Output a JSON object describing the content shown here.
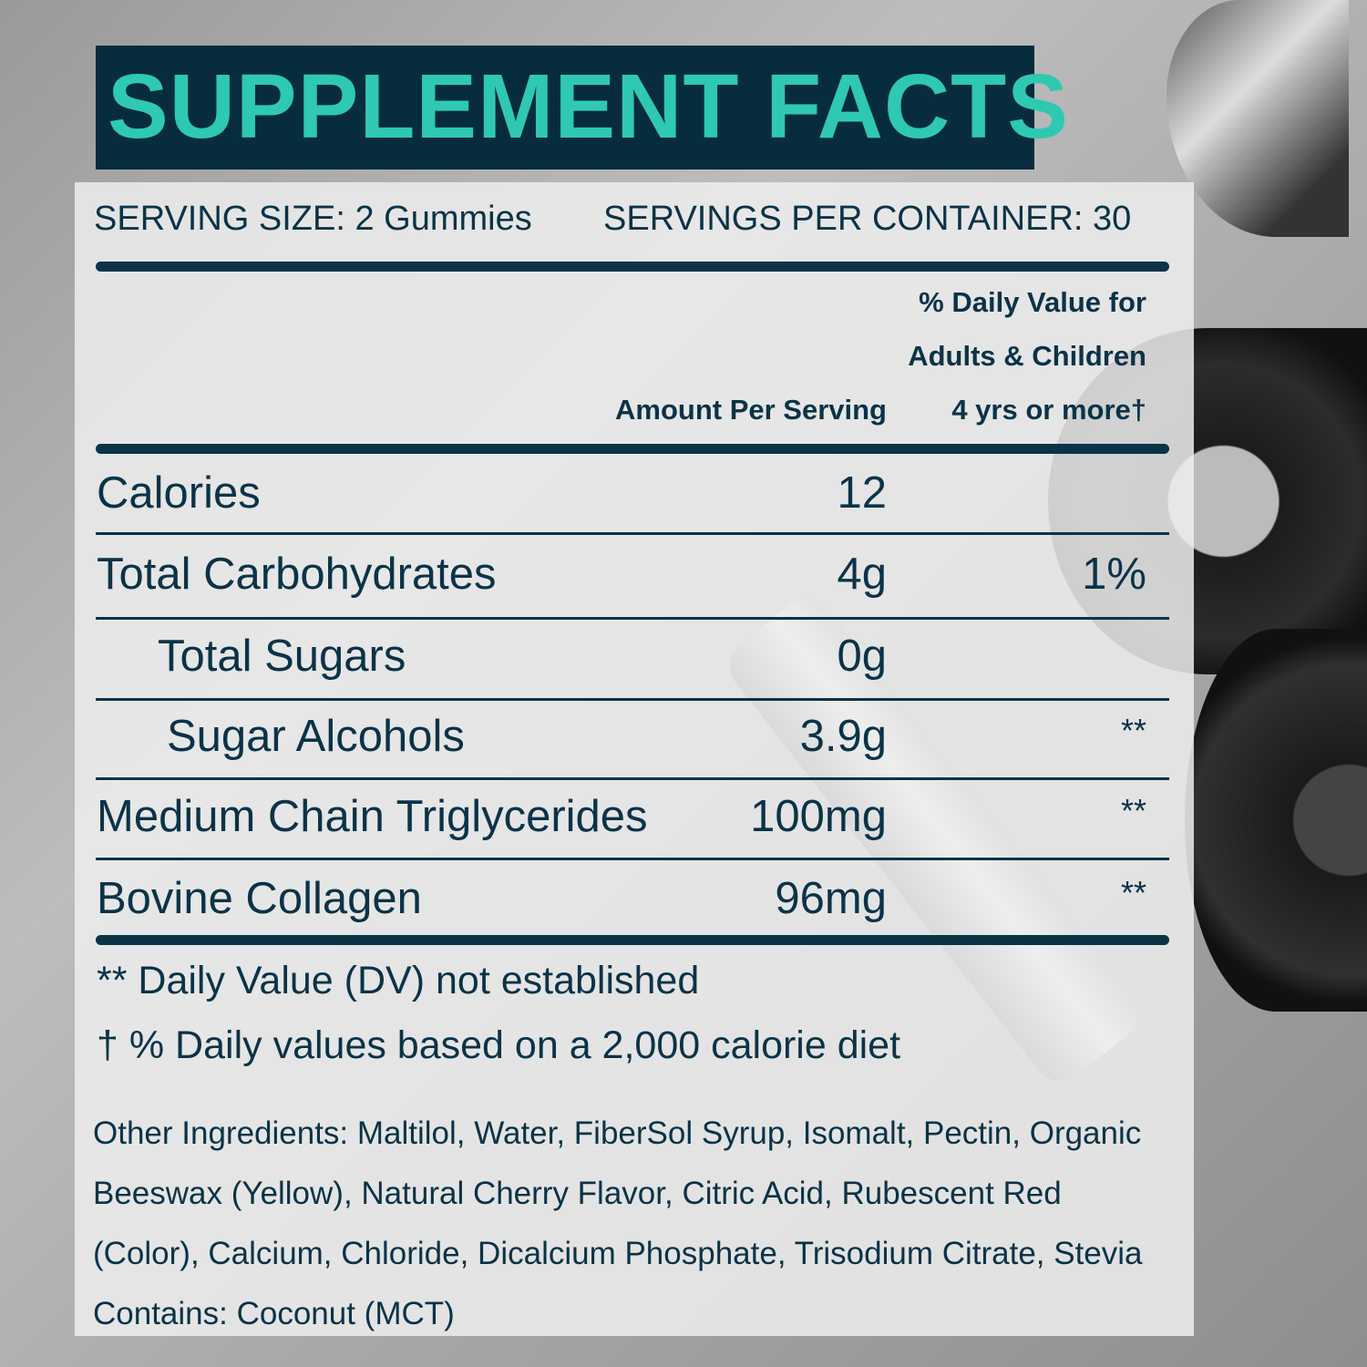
{
  "title": "SUPPLEMENT FACTS",
  "serving_size": "SERVING SIZE: 2 Gummies",
  "servings_per_container": "SERVINGS PER CONTAINER: 30",
  "columns": {
    "amount": "Amount Per Serving",
    "dv_line1": "% Daily Value for",
    "dv_line2": "Adults & Children",
    "dv_line3": "4 yrs or more†"
  },
  "rows": [
    {
      "name": "Calories",
      "amount": "12",
      "dv": ""
    },
    {
      "name": "Total Carbohydrates",
      "amount": "4g",
      "dv": "1%"
    },
    {
      "name": "Total Sugars",
      "amount": "0g",
      "dv": ""
    },
    {
      "name": "Sugar Alcohols",
      "amount": "3.9g",
      "dv": "**"
    },
    {
      "name": "Medium Chain Triglycerides",
      "amount": "100mg",
      "dv": "**"
    },
    {
      "name": "Bovine Collagen",
      "amount": "96mg",
      "dv": "**"
    }
  ],
  "footnotes": [
    "** Daily Value (DV) not established",
    "† % Daily values based on a 2,000 calorie diet"
  ],
  "ingredients": [
    "Other Ingredients: Maltilol, Water, FiberSol Syrup, Isomalt, Pectin, Organic",
    "Beeswax (Yellow), Natural Cherry Flavor, Citric Acid, Rubescent Red",
    "(Color), Calcium, Chloride, Dicalcium Phosphate, Trisodium Citrate, Stevia",
    "Contains: Coconut (MCT)"
  ],
  "colors": {
    "header_bg": "#062c3d",
    "title": "#2ec9b0",
    "text": "#0b3347"
  }
}
